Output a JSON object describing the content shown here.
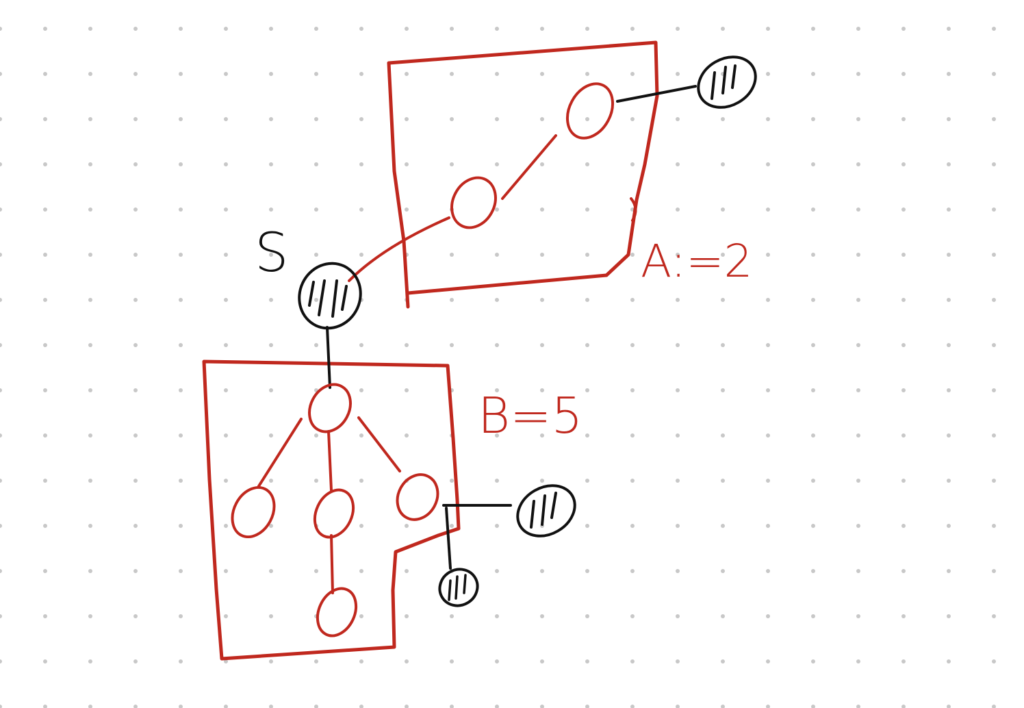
{
  "colors": {
    "background": "#ffffff",
    "dot_grid": "#c8c8c8",
    "red_ink": "#c0281e",
    "black_ink": "#111111"
  },
  "labels": {
    "source": "S",
    "group_a": "A:=2",
    "group_b": "B=5"
  }
}
